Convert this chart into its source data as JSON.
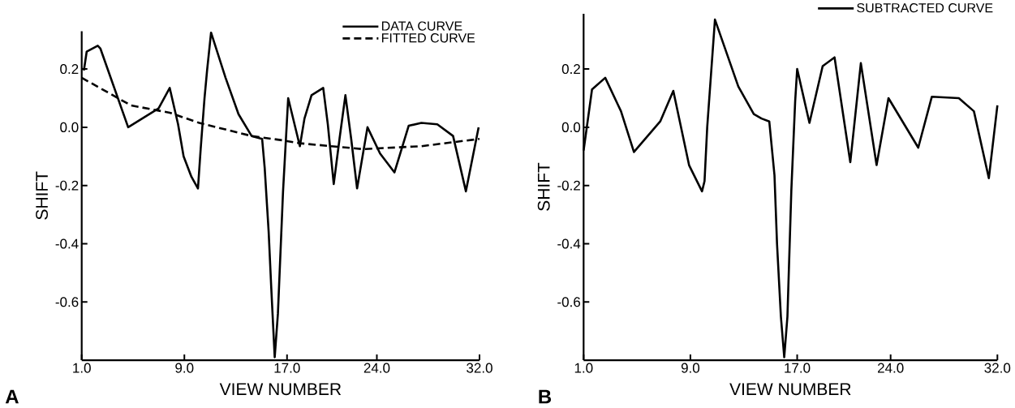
{
  "chart_data": [
    {
      "type": "line",
      "xlabel": "VIEW NUMBER",
      "ylabel": "SHIFT",
      "annotations": [
        "A"
      ],
      "legend": "top right",
      "xlim": [
        1,
        32
      ],
      "ylim": [
        -0.8,
        0.33
      ],
      "xticks": [
        {
          "value": 1,
          "label": "1.0"
        },
        {
          "value": 9,
          "label": "9.0"
        },
        {
          "value": 17,
          "label": "17.0"
        },
        {
          "value": 24,
          "label": "24.0"
        },
        {
          "value": 32,
          "label": "32.0"
        }
      ],
      "yticks": [
        {
          "value": 0.2,
          "label": "0.2"
        },
        {
          "value": 0,
          "label": "0.0"
        },
        {
          "value": -0.2,
          "label": "-0.2"
        },
        {
          "value": -0.4,
          "label": "-0.4"
        },
        {
          "value": -0.6,
          "label": "-0.6"
        }
      ],
      "series": [
        {
          "name": "DATA CURVE",
          "color": "#000000",
          "line_style": "solid",
          "x": [
            1.17,
            1.39,
            2.25,
            2.46,
            4.62,
            6.99,
            7.86,
            8.51,
            8.94,
            9.55,
            10.06,
            10.27,
            10.57,
            10.77,
            11.08,
            12.21,
            13.22,
            14.24,
            15.06,
            15.26,
            15.57,
            15.77,
            16.04,
            16.29,
            16.69,
            17.09,
            18.0,
            18.36,
            18.91,
            19.82,
            20.18,
            20.64,
            21.09,
            21.55,
            22.0,
            22.46,
            23.27,
            24.25,
            25.37,
            26.48,
            27.47,
            28.71,
            29.94,
            30.94,
            31.93
          ],
          "values": [
            0.195,
            0.26,
            0.28,
            0.27,
            0.0,
            0.065,
            0.135,
            0.01,
            -0.1,
            -0.17,
            -0.21,
            -0.075,
            0.1,
            0.195,
            0.325,
            0.17,
            0.045,
            -0.03,
            -0.04,
            -0.14,
            -0.36,
            -0.55,
            -0.79,
            -0.64,
            -0.22,
            0.1,
            -0.065,
            0.03,
            0.11,
            0.135,
            0.01,
            -0.195,
            -0.04,
            0.11,
            -0.04,
            -0.21,
            0.0,
            -0.09,
            -0.155,
            0.005,
            0.015,
            0.01,
            -0.03,
            -0.22,
            0.0
          ]
        },
        {
          "name": "FITTED CURVE",
          "color": "#000000",
          "line_style": "dashed",
          "x": [
            1,
            4.84,
            7.86,
            10.16,
            14.24,
            16.69,
            18.0,
            22.91,
            27.47,
            32
          ],
          "values": [
            0.17,
            0.075,
            0.05,
            0.015,
            -0.03,
            -0.045,
            -0.055,
            -0.075,
            -0.065,
            -0.04
          ]
        }
      ]
    },
    {
      "type": "line",
      "xlabel": "VIEW NUMBER",
      "ylabel": "SHIFT",
      "annotations": [
        "B"
      ],
      "legend": "top right",
      "xlim": [
        1,
        32
      ],
      "ylim": [
        -0.8,
        0.39
      ],
      "xticks": [
        {
          "value": 1,
          "label": "1.0"
        },
        {
          "value": 9,
          "label": "9.0"
        },
        {
          "value": 17,
          "label": "17.0"
        },
        {
          "value": 24,
          "label": "24.0"
        },
        {
          "value": 32,
          "label": "32.0"
        }
      ],
      "yticks": [
        {
          "value": 0.2,
          "label": "0.2"
        },
        {
          "value": 0,
          "label": "0.0"
        },
        {
          "value": -0.2,
          "label": "-0.2"
        },
        {
          "value": -0.4,
          "label": "-0.4"
        },
        {
          "value": -0.6,
          "label": "-0.6"
        }
      ],
      "series": [
        {
          "name": "SUBTRACTED CURVE",
          "color": "#000000",
          "line_style": "solid",
          "x": [
            1.0,
            1.24,
            1.63,
            2.62,
            3.8,
            4.77,
            6.74,
            7.72,
            8.9,
            9.87,
            10.06,
            10.26,
            10.55,
            10.84,
            12.59,
            13.75,
            14.33,
            14.91,
            15.3,
            15.49,
            15.78,
            16.03,
            16.27,
            16.56,
            16.85,
            17.0,
            17.92,
            18.91,
            19.8,
            20.98,
            21.77,
            22.95,
            23.84,
            26.07,
            27.09,
            29.11,
            30.24,
            31.36,
            32.0
          ],
          "values": [
            -0.08,
            0.0,
            0.13,
            0.17,
            0.055,
            -0.085,
            0.02,
            0.125,
            -0.13,
            -0.22,
            -0.185,
            0.0,
            0.185,
            0.37,
            0.14,
            0.045,
            0.03,
            0.02,
            -0.165,
            -0.4,
            -0.65,
            -0.79,
            -0.65,
            -0.22,
            0.09,
            0.2,
            0.015,
            0.21,
            0.24,
            -0.12,
            0.22,
            -0.13,
            0.1,
            -0.07,
            0.105,
            0.1,
            0.055,
            -0.175,
            0.075
          ]
        }
      ]
    }
  ]
}
